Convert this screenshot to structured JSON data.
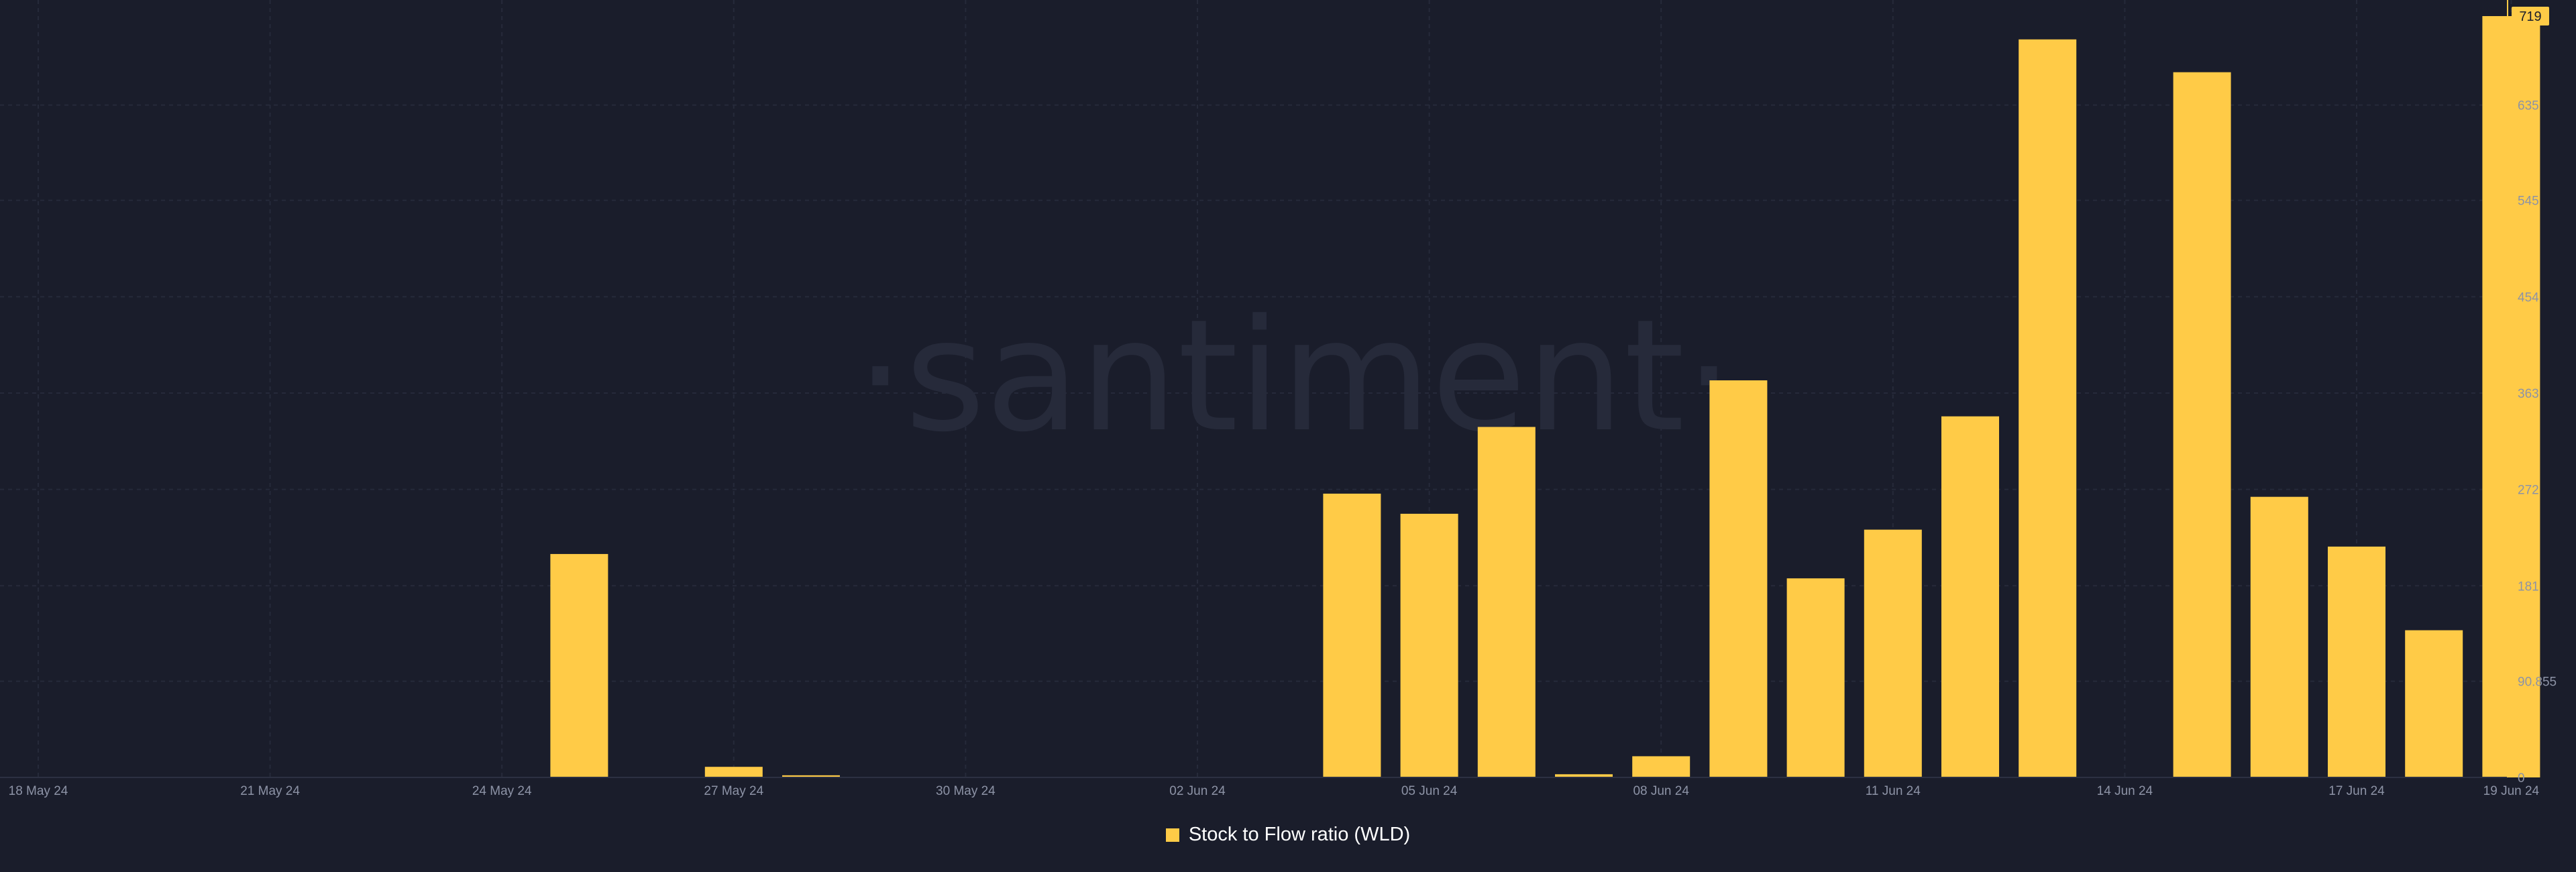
{
  "watermark": "·santiment·",
  "chart_data": {
    "type": "bar",
    "categories": [
      "18 May 24",
      "19 May 24",
      "20 May 24",
      "21 May 24",
      "22 May 24",
      "23 May 24",
      "24 May 24",
      "25 May 24",
      "26 May 24",
      "27 May 24",
      "28 May 24",
      "29 May 24",
      "30 May 24",
      "31 May 24",
      "01 Jun 24",
      "02 Jun 24",
      "03 Jun 24",
      "04 Jun 24",
      "05 Jun 24",
      "06 Jun 24",
      "07 Jun 24",
      "08 Jun 24",
      "09 Jun 24",
      "10 Jun 24",
      "11 Jun 24",
      "12 Jun 24",
      "13 Jun 24",
      "14 Jun 24",
      "15 Jun 24",
      "16 Jun 24",
      "17 Jun 24",
      "18 Jun 24",
      "19 Jun 24"
    ],
    "x_tick_labels": [
      "18 May 24",
      "21 May 24",
      "24 May 24",
      "27 May 24",
      "30 May 24",
      "02 Jun 24",
      "05 Jun 24",
      "08 Jun 24",
      "11 Jun 24",
      "14 Jun 24",
      "17 Jun 24",
      "19 Jun 24"
    ],
    "series": [
      {
        "name": "Stock to Flow ratio (WLD)",
        "color": "#ffcb47",
        "values": [
          0,
          0,
          0,
          0,
          0,
          0,
          0,
          211,
          0,
          10,
          2,
          0,
          0,
          0,
          0,
          0,
          0,
          268,
          249,
          331,
          3,
          20,
          375,
          188,
          234,
          341,
          697,
          0,
          666,
          265,
          218,
          139,
          719
        ]
      }
    ],
    "y_ticks": [
      "0",
      "90.855",
      "181",
      "272",
      "363",
      "454",
      "545",
      "635"
    ],
    "y_tick_values": [
      0,
      90.855,
      181,
      272,
      363,
      454,
      545,
      635
    ],
    "last_value_label": "719",
    "ylim": [
      0,
      719
    ],
    "grid": true,
    "legend_position": "bottom-center",
    "colors": {
      "background": "#1a1d2b",
      "bar": "#ffcb47",
      "grid": "#262a3a",
      "axis_text": "#8d93a6"
    }
  }
}
